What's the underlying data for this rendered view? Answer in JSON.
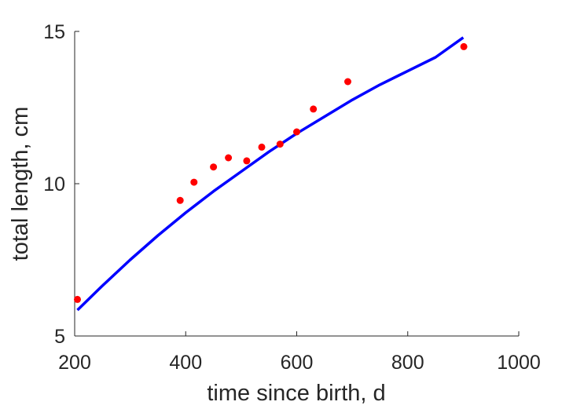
{
  "chart_data": {
    "type": "scatter",
    "title": "",
    "xlabel": "time since birth, d",
    "ylabel": "total length, cm",
    "xlim": [
      200,
      1000
    ],
    "ylim": [
      5,
      15
    ],
    "xticks": [
      200,
      400,
      600,
      800,
      1000
    ],
    "yticks": [
      5,
      10,
      15
    ],
    "grid": false,
    "legend": "none",
    "series": [
      {
        "kind": "points",
        "color": "#ff0000",
        "x": [
          205,
          390,
          415,
          450,
          477,
          510,
          537,
          570,
          600,
          630,
          692,
          901
        ],
        "y": [
          6.2,
          9.45,
          10.05,
          10.55,
          10.85,
          10.75,
          11.2,
          11.3,
          11.7,
          12.45,
          13.35,
          14.5
        ]
      },
      {
        "kind": "curve",
        "color": "#0000ff",
        "x": [
          205,
          250,
          300,
          350,
          400,
          450,
          500,
          550,
          600,
          650,
          700,
          750,
          800,
          850,
          900
        ],
        "y": [
          5.85,
          6.65,
          7.5,
          8.3,
          9.05,
          9.75,
          10.4,
          11.05,
          11.65,
          12.2,
          12.75,
          13.25,
          13.7,
          14.15,
          14.8
        ]
      }
    ]
  }
}
